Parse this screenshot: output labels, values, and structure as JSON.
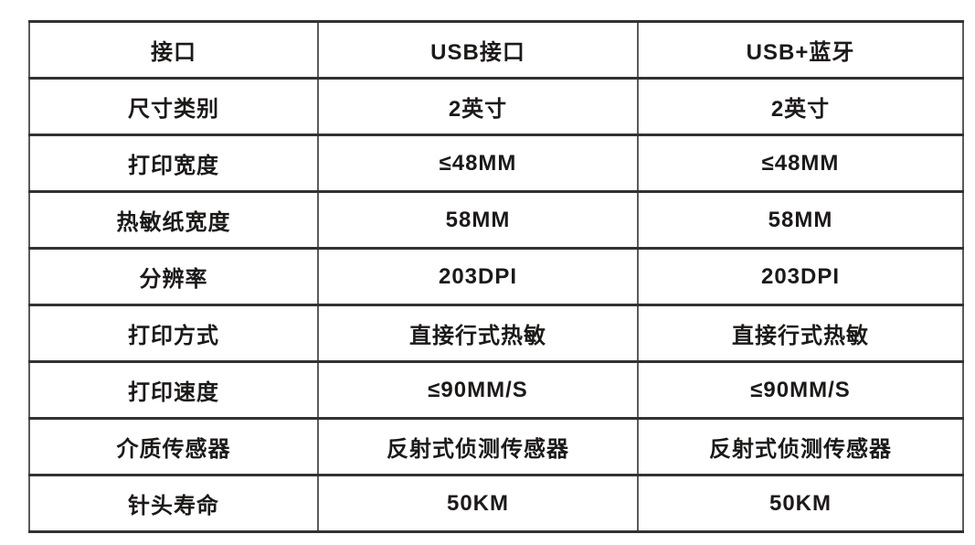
{
  "colors": {
    "background": "#ffffff",
    "text": "#1c1a19",
    "horizontal_border": "#343230",
    "vertical_border": "#5b5b5b"
  },
  "table": {
    "rows": [
      {
        "cells": [
          "接口",
          "USB接口",
          "USB+蓝牙"
        ]
      },
      {
        "cells": [
          "尺寸类别",
          "2英寸",
          "2英寸"
        ]
      },
      {
        "cells": [
          "打印宽度",
          "≤48MM",
          "≤48MM"
        ]
      },
      {
        "cells": [
          "热敏纸宽度",
          "58MM",
          "58MM"
        ]
      },
      {
        "cells": [
          "分辨率",
          "203DPI",
          "203DPI"
        ]
      },
      {
        "cells": [
          "打印方式",
          "直接行式热敏",
          "直接行式热敏"
        ]
      },
      {
        "cells": [
          "打印速度",
          "≤90MM/S",
          "≤90MM/S"
        ]
      },
      {
        "cells": [
          "介质传感器",
          "反射式侦测传感器",
          "反射式侦测传感器"
        ]
      },
      {
        "cells": [
          "针头寿命",
          "50KM",
          "50KM"
        ]
      }
    ]
  }
}
